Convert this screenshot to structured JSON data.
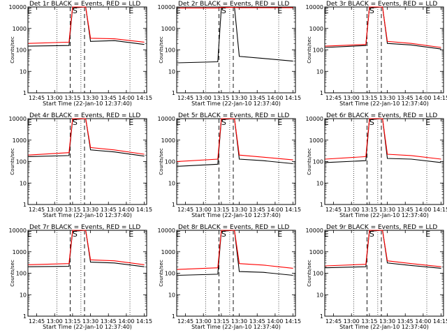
{
  "common": {
    "xlabel": "Start Time (22-Jan-10 12:37:40)",
    "ylabel": "Counts/sec",
    "x_ticks": [
      "12:45",
      "13:00",
      "13:15",
      "13:30",
      "13:45",
      "14:00",
      "14:15"
    ],
    "y_ticks": [
      "1",
      "10",
      "100",
      "1000",
      "10000"
    ],
    "markers": [
      {
        "label": "E",
        "time": "12:39"
      },
      {
        "label": "S",
        "time": "13:17"
      },
      {
        "label": "E",
        "time": "14:04"
      }
    ],
    "dotted_lines_time": [
      "13:02",
      "13:22",
      "14:03"
    ],
    "dashed_lines_time": [
      "13:13",
      "13:25"
    ],
    "xlim_time": [
      "12:37:40",
      "14:17"
    ],
    "ylim": [
      1,
      10000
    ],
    "y_scale": "log",
    "colors": {
      "events": "#000000",
      "lld": "#ff0000"
    }
  },
  "chart_data": [
    {
      "type": "line",
      "title": "Det 1r BLACK = Events, RED = LLD",
      "xlabel": "Start Time (22-Jan-10 12:37:40)",
      "ylabel": "Counts/sec",
      "x": [
        "12:38",
        "13:12",
        "13:15",
        "13:26",
        "13:30",
        "13:50",
        "14:15"
      ],
      "series": [
        {
          "name": "Events",
          "color": "#000000",
          "values": [
            150,
            160,
            9000,
            10000,
            250,
            270,
            180
          ]
        },
        {
          "name": "LLD",
          "color": "#ff0000",
          "values": [
            200,
            230,
            10000,
            10000,
            350,
            330,
            230
          ]
        }
      ]
    },
    {
      "type": "line",
      "title": "Det 2r BLACK = Events, RED = LLD",
      "xlabel": "Start Time (22-Jan-10 12:37:40)",
      "ylabel": "Counts/sec",
      "x": [
        "12:38",
        "13:12",
        "13:15",
        "13:26",
        "13:30",
        "13:50",
        "14:15"
      ],
      "series": [
        {
          "name": "Events",
          "color": "#000000",
          "values": [
            25,
            28,
            9000,
            10000,
            50,
            40,
            30
          ]
        },
        {
          "name": "LLD",
          "color": "#ff0000",
          "values": [
            9000,
            9000,
            9500,
            9500,
            9200,
            9200,
            9200
          ]
        }
      ]
    },
    {
      "type": "line",
      "title": "Det 3r BLACK = Events, RED = LLD",
      "xlabel": "Start Time (22-Jan-10 12:37:40)",
      "ylabel": "Counts/sec",
      "x": [
        "12:38",
        "13:12",
        "13:15",
        "13:26",
        "13:30",
        "13:50",
        "14:15"
      ],
      "series": [
        {
          "name": "Events",
          "color": "#000000",
          "values": [
            130,
            160,
            9000,
            10000,
            200,
            170,
            110
          ]
        },
        {
          "name": "LLD",
          "color": "#ff0000",
          "values": [
            150,
            180,
            10000,
            10000,
            250,
            200,
            130
          ]
        }
      ]
    },
    {
      "type": "line",
      "title": "Det 4r BLACK = Events, RED = LLD",
      "xlabel": "Start Time (22-Jan-10 12:37:40)",
      "ylabel": "Counts/sec",
      "x": [
        "12:38",
        "13:12",
        "13:15",
        "13:26",
        "13:30",
        "13:50",
        "14:15"
      ],
      "series": [
        {
          "name": "Events",
          "color": "#000000",
          "values": [
            170,
            190,
            9000,
            10000,
            350,
            280,
            180
          ]
        },
        {
          "name": "LLD",
          "color": "#ff0000",
          "values": [
            200,
            260,
            10000,
            10000,
            450,
            350,
            220
          ]
        }
      ]
    },
    {
      "type": "line",
      "title": "Det 5r BLACK = Events, RED = LLD",
      "xlabel": "Start Time (22-Jan-10 12:37:40)",
      "ylabel": "Counts/sec",
      "x": [
        "12:38",
        "13:12",
        "13:15",
        "13:26",
        "13:30",
        "13:50",
        "14:15"
      ],
      "series": [
        {
          "name": "Events",
          "color": "#000000",
          "values": [
            60,
            75,
            9000,
            10000,
            130,
            110,
            80
          ]
        },
        {
          "name": "LLD",
          "color": "#ff0000",
          "values": [
            100,
            130,
            10000,
            10000,
            200,
            160,
            120
          ]
        }
      ]
    },
    {
      "type": "line",
      "title": "Det 6r BLACK = Events, RED = LLD",
      "xlabel": "Start Time (22-Jan-10 12:37:40)",
      "ylabel": "Counts/sec",
      "x": [
        "12:38",
        "13:12",
        "13:15",
        "13:26",
        "13:30",
        "13:50",
        "14:15"
      ],
      "series": [
        {
          "name": "Events",
          "color": "#000000",
          "values": [
            90,
            110,
            9000,
            10000,
            140,
            130,
            90
          ]
        },
        {
          "name": "LLD",
          "color": "#ff0000",
          "values": [
            130,
            170,
            10000,
            10000,
            220,
            190,
            130
          ]
        }
      ]
    },
    {
      "type": "line",
      "title": "Det 7r BLACK = Events, RED = LLD",
      "xlabel": "Start Time (22-Jan-10 12:37:40)",
      "ylabel": "Counts/sec",
      "x": [
        "12:38",
        "13:12",
        "13:15",
        "13:26",
        "13:30",
        "13:50",
        "14:15"
      ],
      "series": [
        {
          "name": "Events",
          "color": "#000000",
          "values": [
            200,
            210,
            9000,
            10000,
            330,
            300,
            200
          ]
        },
        {
          "name": "LLD",
          "color": "#ff0000",
          "values": [
            250,
            280,
            10000,
            10000,
            420,
            380,
            250
          ]
        }
      ]
    },
    {
      "type": "line",
      "title": "Det 8r BLACK = Events, RED = LLD",
      "xlabel": "Start Time (22-Jan-10 12:37:40)",
      "ylabel": "Counts/sec",
      "x": [
        "12:38",
        "13:12",
        "13:15",
        "13:26",
        "13:30",
        "13:50",
        "14:15"
      ],
      "series": [
        {
          "name": "Events",
          "color": "#000000",
          "values": [
            80,
            90,
            9000,
            10000,
            120,
            110,
            80
          ]
        },
        {
          "name": "LLD",
          "color": "#ff0000",
          "values": [
            150,
            180,
            10000,
            10000,
            280,
            240,
            170
          ]
        }
      ]
    },
    {
      "type": "line",
      "title": "Det 9r BLACK = Events, RED = LLD",
      "xlabel": "Start Time (22-Jan-10 12:37:40)",
      "ylabel": "Counts/sec",
      "x": [
        "12:38",
        "13:12",
        "13:15",
        "13:26",
        "13:30",
        "13:50",
        "14:15"
      ],
      "series": [
        {
          "name": "Events",
          "color": "#000000",
          "values": [
            180,
            200,
            9000,
            10000,
            300,
            230,
            170
          ]
        },
        {
          "name": "LLD",
          "color": "#ff0000",
          "values": [
            220,
            260,
            10000,
            10000,
            380,
            280,
            200
          ]
        }
      ]
    }
  ]
}
